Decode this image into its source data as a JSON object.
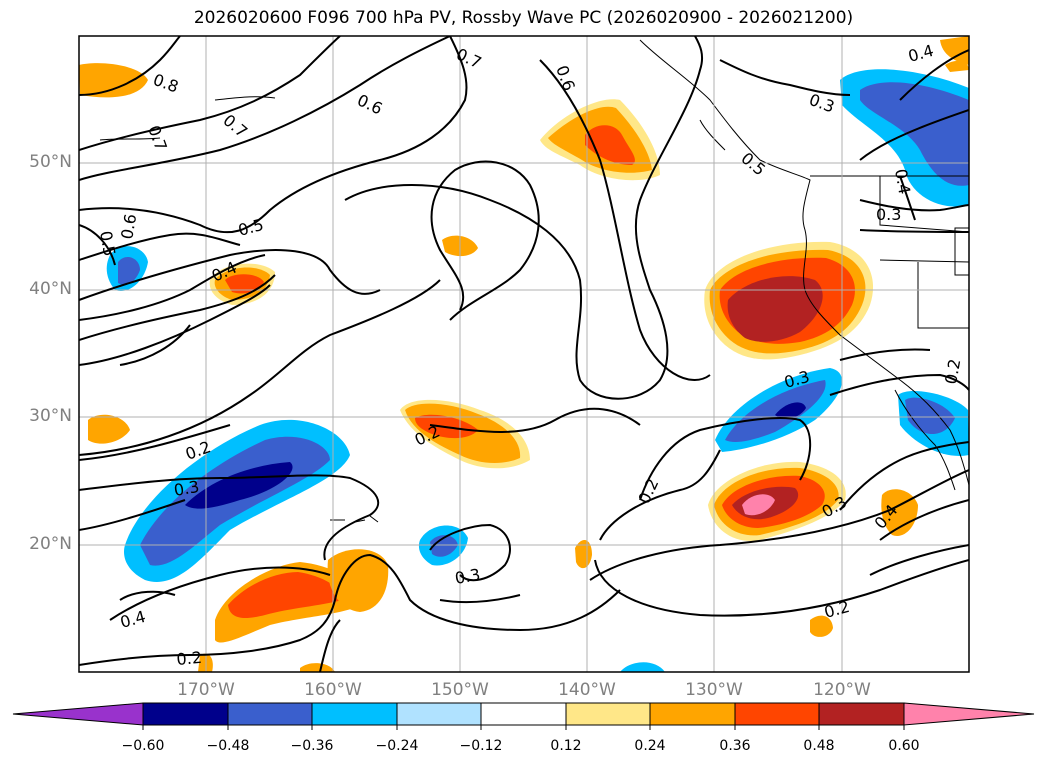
{
  "title": "2026020600 F096 700 hPa PV, Rossby Wave PC (2026020900 - 2026021200)",
  "map": {
    "lon_range": [
      -180,
      -110
    ],
    "lat_range": [
      10,
      60
    ],
    "lat_ticks": [
      "20°N",
      "30°N",
      "40°N",
      "50°N"
    ],
    "lon_ticks": [
      "170°W",
      "160°W",
      "150°W",
      "140°W",
      "130°W",
      "120°W"
    ],
    "grid": true
  },
  "contour_labels": [
    "0.8",
    "0.7",
    "0.7",
    "0.7",
    "0.6",
    "0.6",
    "0.6",
    "0.5",
    "0.5",
    "0.5",
    "0.4",
    "0.4",
    "0.4",
    "0.4",
    "0.3",
    "0.3",
    "0.3",
    "0.3",
    "0.3",
    "0.2",
    "0.2",
    "0.2",
    "0.2",
    "0.2",
    "0.2",
    "0.3",
    "0.4"
  ],
  "colorbar": {
    "ticks": [
      "−0.60",
      "−0.48",
      "−0.36",
      "−0.24",
      "−0.12",
      "0.12",
      "0.24",
      "0.36",
      "0.48",
      "0.60"
    ],
    "colors": [
      "#9932cc",
      "#00008b",
      "#3a5fcd",
      "#00bfff",
      "#b0e2ff",
      "#ffffff",
      "#ffe788",
      "#ffa500",
      "#ff4500",
      "#b22222",
      "#ff82ab"
    ],
    "extend": "both"
  }
}
